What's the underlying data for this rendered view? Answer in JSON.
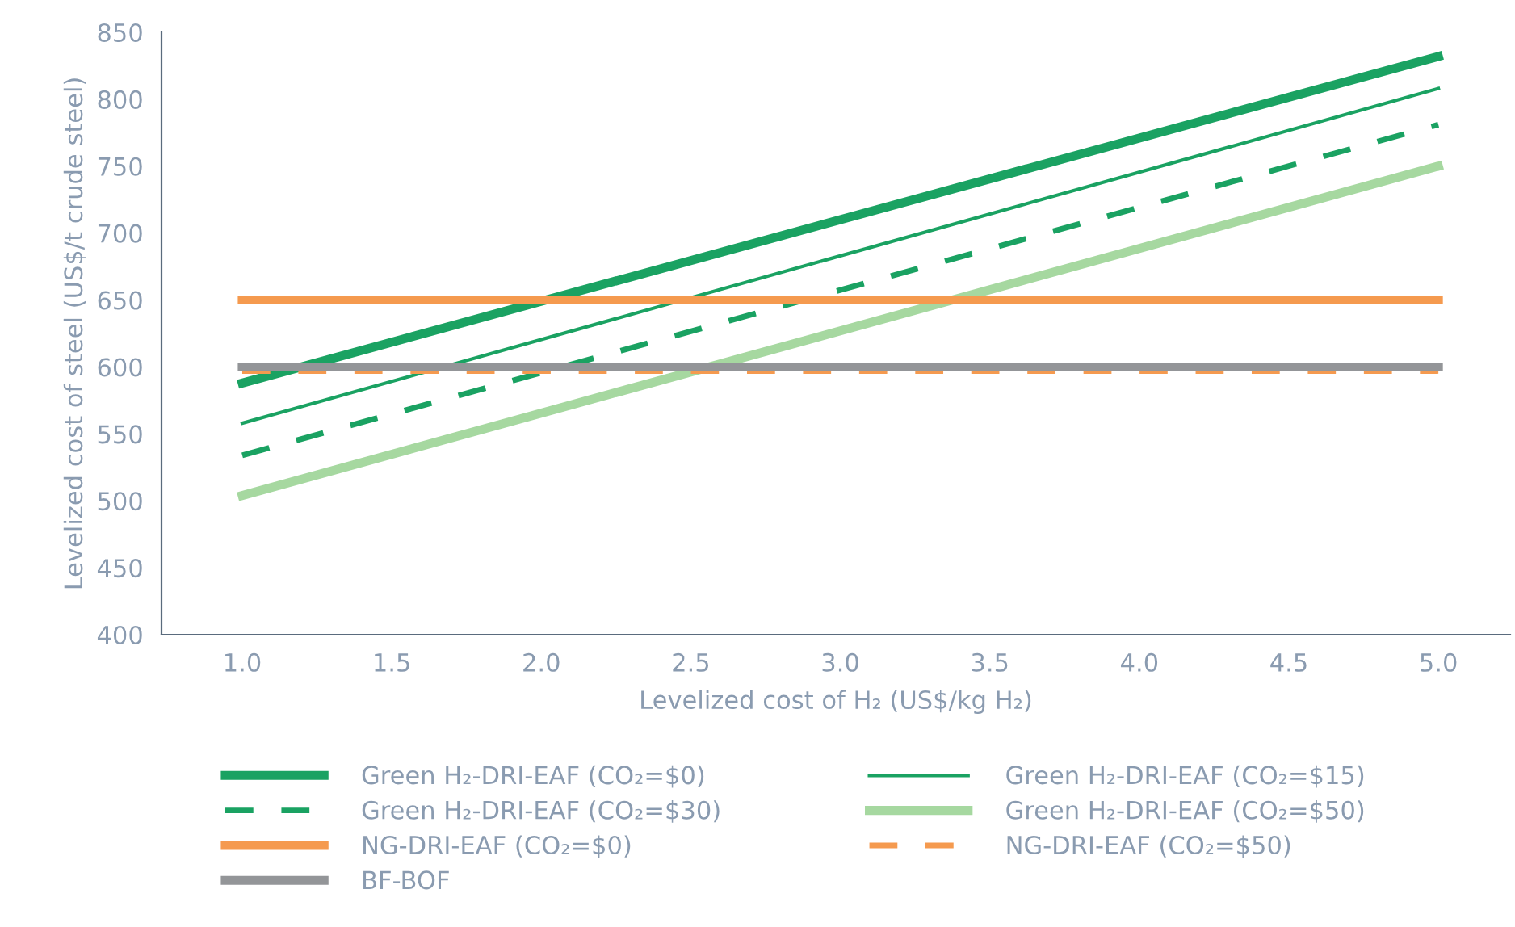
{
  "chart_data": {
    "type": "line",
    "xlabel": "Levelized cost of H₂ (US$/kg H₂)",
    "ylabel": "Levelized cost of steel (US$/t crude steel)",
    "xlim": [
      0.73,
      5.24
    ],
    "xticks": [
      {
        "value": 1,
        "label": "1.0"
      },
      {
        "value": 1.5,
        "label": "1.5"
      },
      {
        "value": 2,
        "label": "2.0"
      },
      {
        "value": 2.5,
        "label": "2.5"
      },
      {
        "value": 3,
        "label": "3.0"
      },
      {
        "value": 3.5,
        "label": "3.5"
      },
      {
        "value": 4,
        "label": "4.0"
      },
      {
        "value": 4.5,
        "label": "4.5"
      },
      {
        "value": 5,
        "label": "5.0"
      }
    ],
    "ylim": [
      400,
      850
    ],
    "yticks": [
      400,
      450,
      500,
      550,
      600,
      650,
      700,
      750,
      800,
      850
    ],
    "grid": false,
    "legend": "bottom",
    "marker": "none",
    "x": [
      1,
      5
    ],
    "series": [
      {
        "name": "Green H₂-DRI-EAF (CO₂=$0)",
        "color": "#1aa262",
        "line_style": "solid",
        "values": [
          588,
          832
        ]
      },
      {
        "name": "Green H₂-DRI-EAF (CO₂=$15)",
        "color": "#1aa262",
        "line_style": "solid",
        "values": [
          558,
          808
        ]
      },
      {
        "name": "Green H₂-DRI-EAF (CO₂=$30)",
        "color": "#1aa262",
        "line_style": "dashed",
        "values": [
          534,
          781
        ]
      },
      {
        "name": "Green H₂-DRI-EAF (CO₂=$50)",
        "color": "#a6d8a0",
        "line_style": "solid",
        "values": [
          504,
          750
        ]
      },
      {
        "name": "NG-DRI-EAF (CO₂=$0)",
        "color": "#f59a4f",
        "line_style": "solid",
        "values": [
          650,
          650
        ]
      },
      {
        "name": "NG-DRI-EAF (CO₂=$50)",
        "color": "#f59a4f",
        "line_style": "dashed",
        "values": [
          597,
          597
        ]
      },
      {
        "name": "BF-BOF",
        "color": "#939598",
        "line_style": "solid",
        "values": [
          600,
          600
        ]
      }
    ]
  }
}
